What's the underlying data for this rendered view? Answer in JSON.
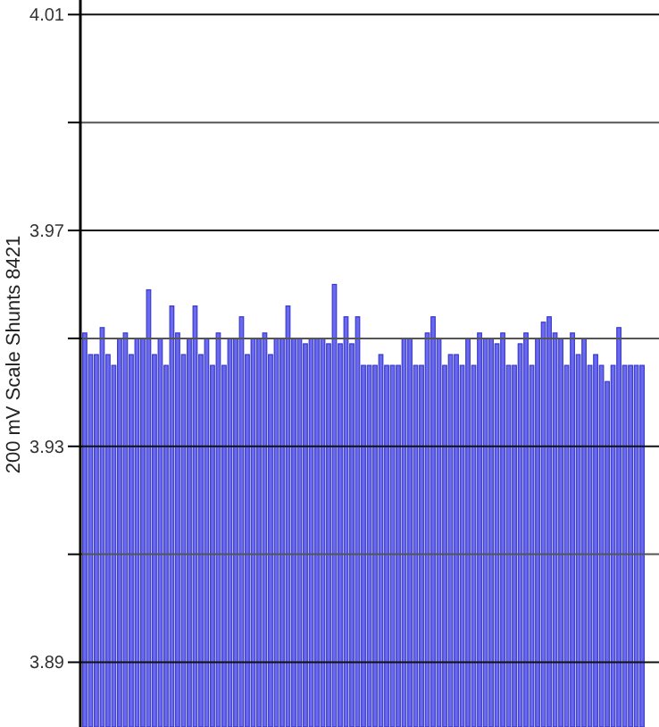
{
  "chart_data": {
    "type": "bar",
    "ylabel": "200 mV Scale  Shunts 8421",
    "categories": [
      null,
      null,
      null,
      null,
      null,
      null,
      null,
      null,
      null,
      null,
      null,
      null,
      null,
      null,
      null,
      null,
      null,
      null,
      null,
      null,
      null,
      null,
      null,
      null,
      null,
      null,
      null,
      null,
      null,
      null,
      null,
      null,
      null,
      null,
      null,
      null,
      null,
      null,
      null,
      null,
      null,
      null,
      null,
      null,
      null,
      null,
      null,
      null,
      null,
      null,
      null,
      null,
      null,
      null,
      null,
      null,
      null,
      null,
      null,
      null,
      null,
      null,
      null,
      null,
      null,
      null,
      null,
      null,
      null,
      null,
      null,
      null,
      null,
      null,
      null,
      null,
      null,
      null,
      null,
      null,
      null,
      null,
      null,
      null,
      null,
      null,
      null,
      null,
      null,
      null,
      null,
      null,
      null,
      null,
      null,
      null,
      null
    ],
    "values": [
      3.951,
      3.947,
      3.947,
      3.952,
      3.947,
      3.945,
      3.95,
      3.951,
      3.947,
      3.95,
      3.95,
      3.959,
      3.947,
      3.95,
      3.945,
      3.956,
      3.951,
      3.947,
      3.95,
      3.956,
      3.947,
      3.95,
      3.945,
      3.951,
      3.945,
      3.95,
      3.95,
      3.954,
      3.947,
      3.95,
      3.95,
      3.951,
      3.947,
      3.95,
      3.95,
      3.956,
      3.95,
      3.95,
      3.949,
      3.95,
      3.95,
      3.95,
      3.949,
      3.96,
      3.949,
      3.954,
      3.949,
      3.954,
      3.945,
      3.945,
      3.945,
      3.947,
      3.945,
      3.945,
      3.945,
      3.95,
      3.95,
      3.945,
      3.945,
      3.951,
      3.954,
      3.95,
      3.945,
      3.947,
      3.947,
      3.945,
      3.95,
      3.945,
      3.951,
      3.95,
      3.95,
      3.949,
      3.951,
      3.945,
      3.945,
      3.949,
      3.951,
      3.945,
      3.95,
      3.953,
      3.954,
      3.951,
      3.95,
      3.945,
      3.951,
      3.947,
      3.95,
      3.945,
      3.947,
      3.945,
      3.942,
      3.945,
      3.952,
      3.945,
      3.945,
      3.945,
      3.945
    ],
    "color": "#6a6af0",
    "ylim": [
      3.878,
      4.0127
    ],
    "yticks": [
      4.01,
      {
        "value": 3.99,
        "label": null
      },
      3.97,
      {
        "value": 3.95,
        "label": null
      },
      3.93,
      {
        "value": 3.91,
        "label": null
      },
      3.89
    ],
    "grid": "y"
  }
}
